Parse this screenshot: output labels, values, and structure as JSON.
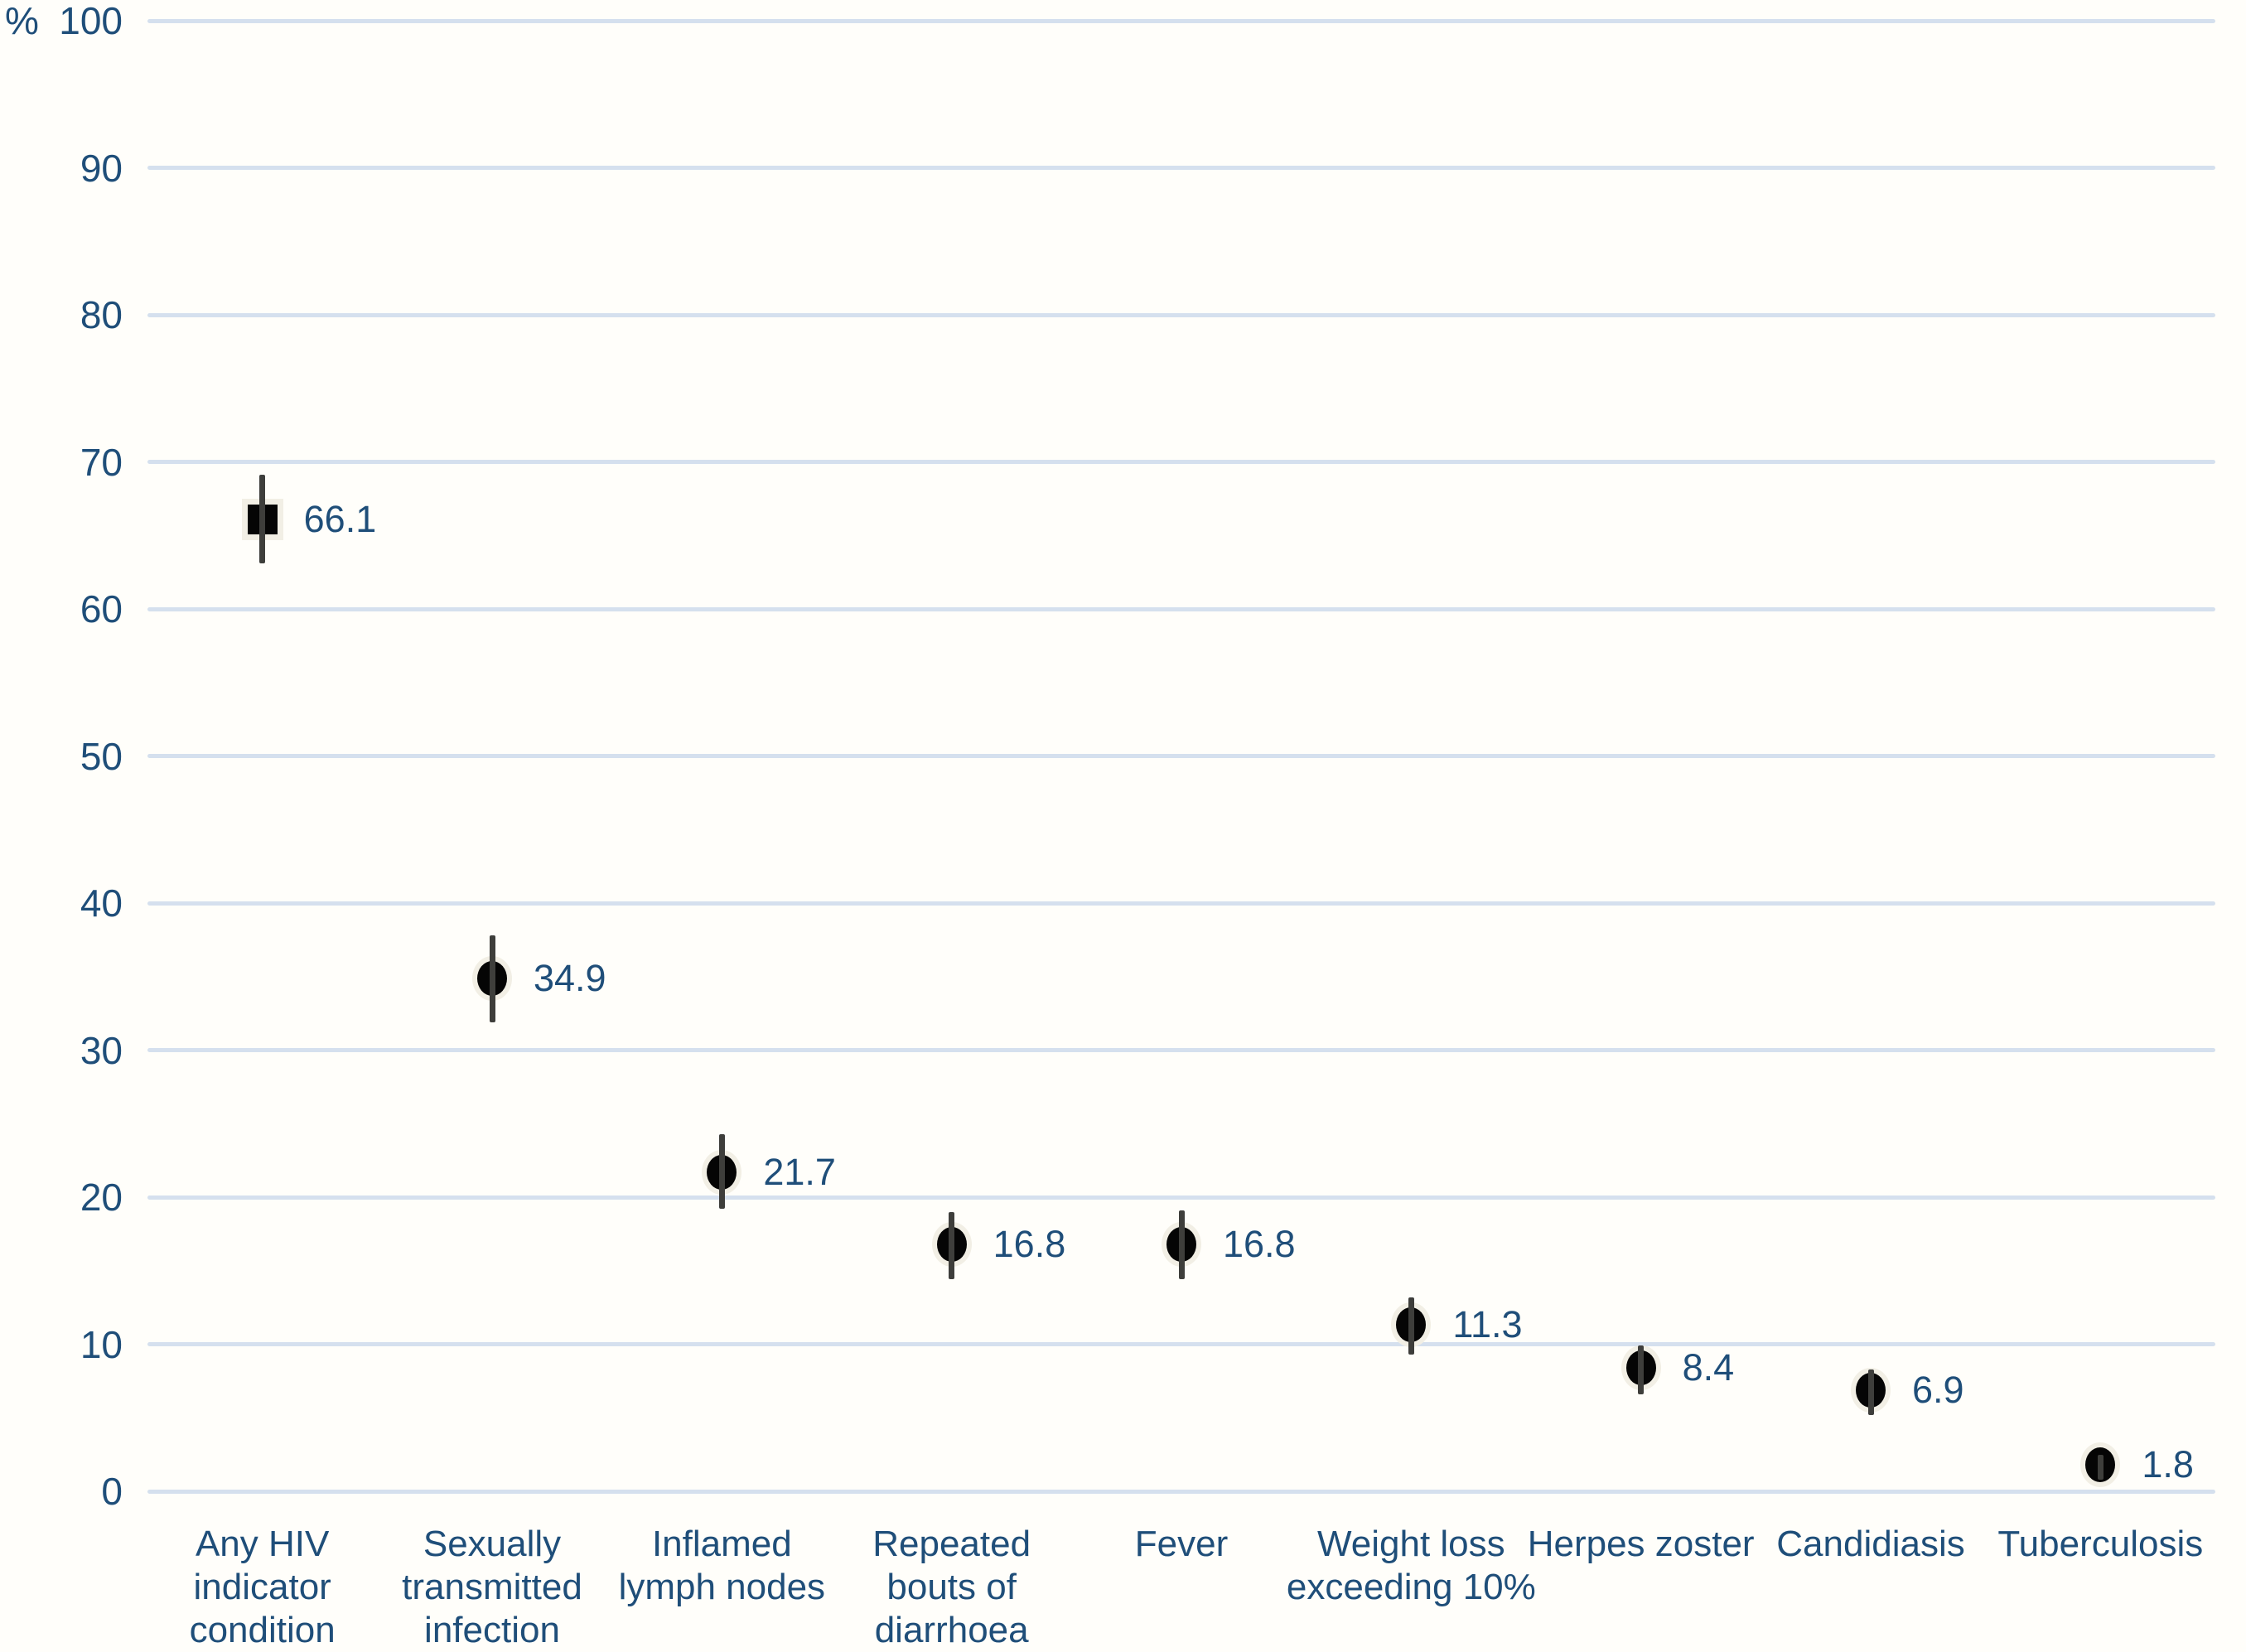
{
  "chart_data": {
    "type": "scatter",
    "title": "",
    "xlabel": "",
    "ylabel": "%",
    "ylim": [
      0,
      100
    ],
    "y_ticks": [
      100,
      90,
      80,
      70,
      60,
      50,
      40,
      30,
      20,
      10,
      0
    ],
    "grid": true,
    "legend": null,
    "categories": [
      "Any HIV indicator condition",
      "Sexually transmitted infection",
      "Inflamed lymph nodes",
      "Repeated bouts of diarrhoea",
      "Fever",
      "Weight loss exceeding 10%",
      "Herpes zoster",
      "Candidiasis",
      "Tuberculosis"
    ],
    "points": [
      {
        "category": "Any HIV indicator condition",
        "label_lines": "Any HIV\nindicator\ncondition",
        "value": 66.1,
        "value_label": "66.1",
        "ci_low": 63.1,
        "ci_high": 69.1,
        "marker": "square"
      },
      {
        "category": "Sexually transmitted infection",
        "label_lines": "Sexually\ntransmitted\ninfection",
        "value": 34.9,
        "value_label": "34.9",
        "ci_low": 31.9,
        "ci_high": 37.8,
        "marker": "circle"
      },
      {
        "category": "Inflamed lymph nodes",
        "label_lines": "Inflamed\nlymph nodes",
        "value": 21.7,
        "value_label": "21.7",
        "ci_low": 19.2,
        "ci_high": 24.3,
        "marker": "circle"
      },
      {
        "category": "Repeated bouts of diarrhoea",
        "label_lines": "Repeated\nbouts of\ndiarrhoea",
        "value": 16.8,
        "value_label": "16.8",
        "ci_low": 14.4,
        "ci_high": 19.0,
        "marker": "circle"
      },
      {
        "category": "Fever",
        "label_lines": "Fever",
        "value": 16.8,
        "value_label": "16.8",
        "ci_low": 14.4,
        "ci_high": 19.1,
        "marker": "circle"
      },
      {
        "category": "Weight loss exceeding 10%",
        "label_lines": "Weight loss\nexceeding 10%",
        "value": 11.3,
        "value_label": "11.3",
        "ci_low": 9.3,
        "ci_high": 13.2,
        "marker": "circle"
      },
      {
        "category": "Herpes zoster",
        "label_lines": "Herpes zoster",
        "value": 8.4,
        "value_label": "8.4",
        "ci_low": 6.6,
        "ci_high": 9.9,
        "marker": "circle"
      },
      {
        "category": "Candidiasis",
        "label_lines": "Candidiasis",
        "value": 6.9,
        "value_label": "6.9",
        "ci_low": 5.2,
        "ci_high": 8.3,
        "marker": "circle"
      },
      {
        "category": "Tuberculosis",
        "label_lines": "Tuberculosis",
        "value": 1.8,
        "value_label": "1.8",
        "ci_low": 0.8,
        "ci_high": 2.5,
        "marker": "circle"
      }
    ],
    "colors": {
      "label_text": "#1f4e79",
      "gridline": "#d5e0ee",
      "marker": "#050505",
      "error_bar": "#3e3e3b",
      "marker_halo": "#f2efe5",
      "background": "#fffefa"
    }
  }
}
